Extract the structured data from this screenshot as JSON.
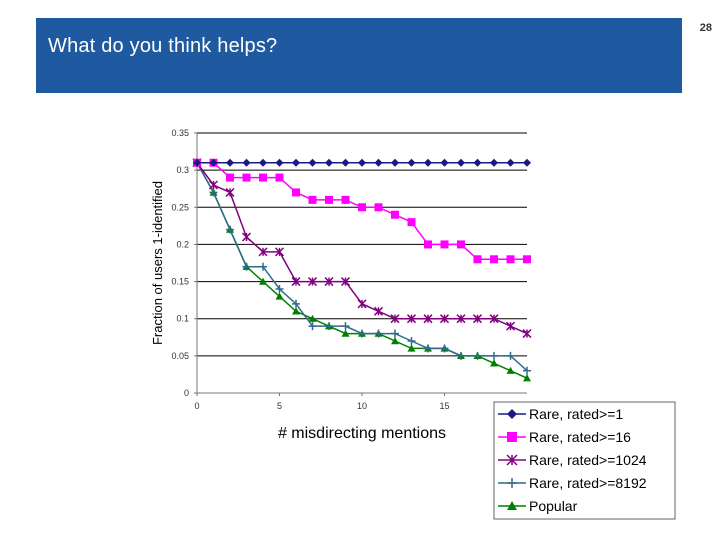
{
  "slide": {
    "title": "What do you think helps?",
    "page_number": "28",
    "title_bar_color": "#1f5aa0"
  },
  "chart_data": {
    "type": "line",
    "xlabel": "# misdirecting mentions",
    "ylabel": "Fraction of users 1-identified",
    "xlim": [
      0,
      20
    ],
    "ylim": [
      0,
      0.35
    ],
    "x_ticks": [
      "0",
      "5",
      "10",
      "15"
    ],
    "y_ticks": [
      "0",
      "0.05",
      "0.1",
      "0.15",
      "0.2",
      "0.25",
      "0.3",
      "0.35"
    ],
    "grid": "horizontal",
    "legend_position": "bottom-right",
    "x": [
      0,
      1,
      2,
      3,
      4,
      5,
      6,
      7,
      8,
      9,
      10,
      11,
      12,
      13,
      14,
      15,
      16,
      17,
      18,
      19,
      20
    ],
    "series": [
      {
        "name": "Rare, rated>=1",
        "color": "#1a1a80",
        "marker": "diamond",
        "values": [
          0.31,
          0.31,
          0.31,
          0.31,
          0.31,
          0.31,
          0.31,
          0.31,
          0.31,
          0.31,
          0.31,
          0.31,
          0.31,
          0.31,
          0.31,
          0.31,
          0.31,
          0.31,
          0.31,
          0.31,
          0.31
        ]
      },
      {
        "name": "Rare, rated>=16",
        "color": "#ff00ff",
        "marker": "square",
        "values": [
          0.31,
          0.31,
          0.29,
          0.29,
          0.29,
          0.29,
          0.27,
          0.26,
          0.26,
          0.26,
          0.25,
          0.25,
          0.24,
          0.23,
          0.2,
          0.2,
          0.2,
          0.18,
          0.18,
          0.18,
          0.18
        ]
      },
      {
        "name": "Rare, rated>=1024",
        "color": "#800080",
        "marker": "asterisk",
        "values": [
          0.31,
          0.28,
          0.27,
          0.21,
          0.19,
          0.19,
          0.15,
          0.15,
          0.15,
          0.15,
          0.12,
          0.11,
          0.1,
          0.1,
          0.1,
          0.1,
          0.1,
          0.1,
          0.1,
          0.09,
          0.08
        ]
      },
      {
        "name": "Rare, rated>=8192",
        "color": "#2e6b8a",
        "marker": "plus",
        "values": [
          0.31,
          0.27,
          0.22,
          0.17,
          0.17,
          0.14,
          0.12,
          0.09,
          0.09,
          0.09,
          0.08,
          0.08,
          0.08,
          0.07,
          0.06,
          0.06,
          0.05,
          0.05,
          0.05,
          0.05,
          0.03
        ]
      },
      {
        "name": "Popular",
        "color": "#008000",
        "marker": "triangle",
        "values": [
          0.31,
          0.27,
          0.22,
          0.17,
          0.15,
          0.13,
          0.11,
          0.1,
          0.09,
          0.08,
          0.08,
          0.08,
          0.07,
          0.06,
          0.06,
          0.06,
          0.05,
          0.05,
          0.04,
          0.03,
          0.02
        ]
      }
    ]
  }
}
